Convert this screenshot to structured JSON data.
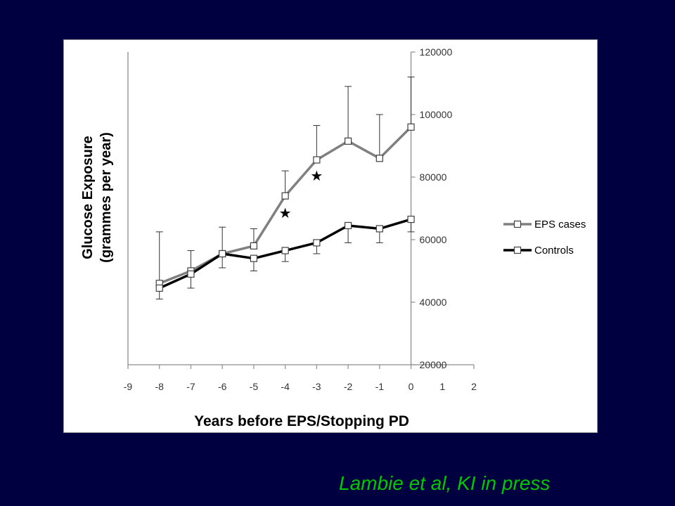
{
  "citation": "Lambie et al, KI in press",
  "chart_data": {
    "type": "line",
    "title": "",
    "xlabel": "Years before EPS/Stopping PD",
    "ylabel_line1": "Glucose Exposure",
    "ylabel_line2": "(grammes per year)",
    "xlim": [
      -9,
      2
    ],
    "ylim": [
      20000,
      120000
    ],
    "x_ticks": [
      -9,
      -8,
      -7,
      -6,
      -5,
      -4,
      -3,
      -2,
      -1,
      0,
      1,
      2
    ],
    "y_ticks": [
      20000,
      40000,
      60000,
      80000,
      100000,
      120000
    ],
    "y_axis_side": "right",
    "grid": false,
    "legend_position": "right",
    "series": [
      {
        "name": "EPS cases",
        "color": "#808080",
        "x": [
          -8,
          -7,
          -6,
          -5,
          -4,
          -3,
          -2,
          -1,
          0
        ],
        "y": [
          46000,
          50000,
          55500,
          58000,
          74000,
          85500,
          91500,
          86000,
          96000
        ],
        "error_upper": [
          62500,
          56500,
          64000,
          63500,
          82000,
          96500,
          109000,
          100000,
          112000
        ],
        "error_direction": "up"
      },
      {
        "name": "Controls",
        "color": "#000000",
        "x": [
          -8,
          -7,
          -6,
          -5,
          -4,
          -3,
          -2,
          -1,
          0
        ],
        "y": [
          44500,
          49000,
          55500,
          54000,
          56500,
          59000,
          64500,
          63500,
          66500
        ],
        "error_lower": [
          41000,
          44500,
          51000,
          50000,
          53000,
          55500,
          59000,
          59000,
          62500
        ],
        "error_direction": "down"
      }
    ],
    "annotations": [
      {
        "text": "★",
        "x": -4,
        "y": 68500
      },
      {
        "text": "★",
        "x": -3,
        "y": 80500
      }
    ]
  }
}
